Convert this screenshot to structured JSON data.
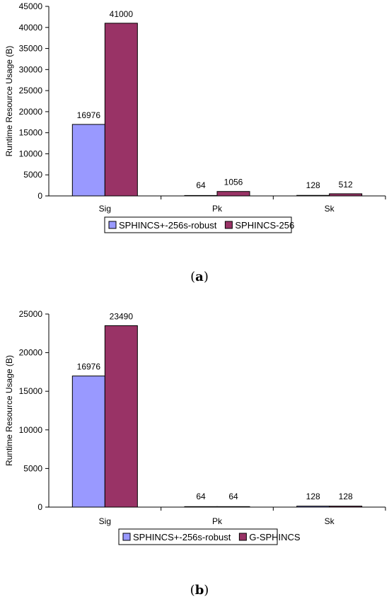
{
  "chart_data": [
    {
      "type": "bar",
      "caption_letter": "a",
      "categories": [
        "Sig",
        "Pk",
        "Sk"
      ],
      "series": [
        {
          "name": "SPHINCS+-256s-robust",
          "values": [
            16976,
            64,
            128
          ],
          "color": "#9999ff"
        },
        {
          "name": "SPHINCS-256",
          "values": [
            41000,
            1056,
            512
          ],
          "color": "#993366"
        }
      ],
      "data_labels": [
        [
          "16976",
          "64",
          "128"
        ],
        [
          "41000",
          "1056",
          "512"
        ]
      ],
      "ylabel": "Runtime Resource Usage (B)",
      "ylim": [
        0,
        45000
      ],
      "yticks": [
        0,
        5000,
        10000,
        15000,
        20000,
        25000,
        30000,
        35000,
        40000,
        45000
      ],
      "grid": false,
      "legend_position": "bottom"
    },
    {
      "type": "bar",
      "caption_letter": "b",
      "categories": [
        "Sig",
        "Pk",
        "Sk"
      ],
      "series": [
        {
          "name": "SPHINCS+-256s-robust",
          "values": [
            16976,
            64,
            128
          ],
          "color": "#9999ff"
        },
        {
          "name": "G-SPHINCS",
          "values": [
            23490,
            64,
            128
          ],
          "color": "#993366"
        }
      ],
      "data_labels": [
        [
          "16976",
          "64",
          "128"
        ],
        [
          "23490",
          "64",
          "128"
        ]
      ],
      "ylabel": "Runtime Resource Usage (B)",
      "ylim": [
        0,
        25000
      ],
      "yticks": [
        0,
        5000,
        10000,
        15000,
        20000,
        25000
      ],
      "grid": false,
      "legend_position": "bottom"
    }
  ]
}
